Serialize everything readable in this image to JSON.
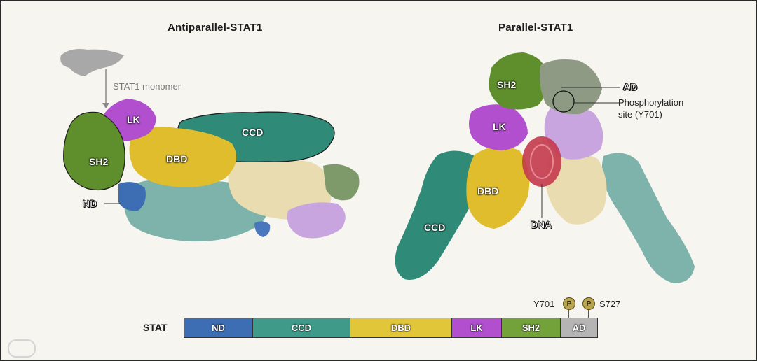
{
  "titles": {
    "left": "Antiparallel-STAT1",
    "right": "Parallel-STAT1"
  },
  "left_structure": {
    "monomer_label": "STAT1 monomer",
    "labels": {
      "lk": "LK",
      "sh2": "SH2",
      "dbd": "DBD",
      "ccd": "CCD",
      "nd": "ND"
    }
  },
  "right_structure": {
    "labels": {
      "sh2": "SH2",
      "lk": "LK",
      "dbd": "DBD",
      "ccd": "CCD",
      "dna": "DNA",
      "ad": "AD"
    },
    "phospho_site": {
      "line1": "Phosphorylation",
      "line2": "site (Y701)"
    }
  },
  "domain_bar": {
    "label": "STAT",
    "segments": [
      {
        "name": "ND",
        "color": "#3d6db3",
        "fraction": 0.166
      },
      {
        "name": "CCD",
        "color": "#3f9a8a",
        "fraction": 0.236
      },
      {
        "name": "DBD",
        "color": "#e2c63a",
        "fraction": 0.246
      },
      {
        "name": "LK",
        "color": "#b14fce",
        "fraction": 0.121
      },
      {
        "name": "SH2",
        "color": "#73a23b",
        "fraction": 0.142
      },
      {
        "name": "AD",
        "color": "#b5b5b5",
        "fraction": 0.089
      }
    ],
    "sites": {
      "y701": "Y701",
      "s727": "S727",
      "p": "P"
    }
  },
  "colors": {
    "nd": "#3d6db3",
    "ccd": "#2f8a78",
    "dbd": "#e0bd2c",
    "lk": "#b14fce",
    "sh2": "#5f8f2c",
    "ad": "#9a9f90",
    "dna": "#c43a4c",
    "ccd_light": "#7db3aa",
    "dbd_light": "#e8dcb0",
    "lk_light": "#c9a5e0",
    "grey": "#a8a8a8"
  }
}
